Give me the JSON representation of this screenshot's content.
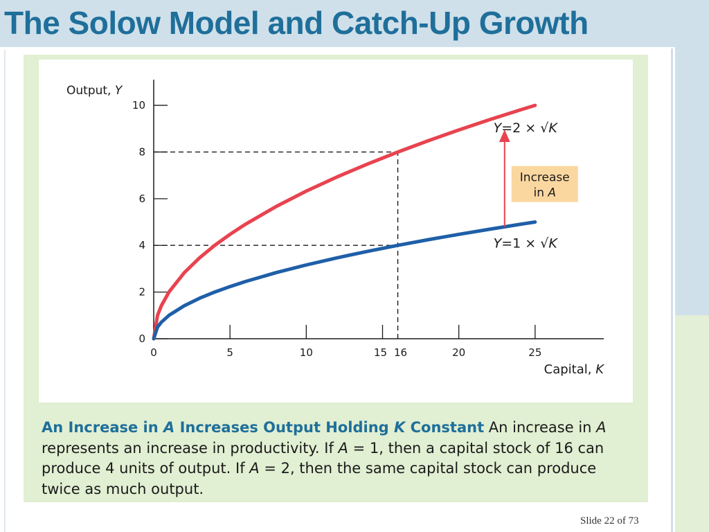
{
  "slide": {
    "title": "The Solow Model and Catch-Up Growth",
    "slide_number": "Slide 22 of 73"
  },
  "colors": {
    "title": "#1f6f9a",
    "red_curve": "#e8434f",
    "blue_curve": "#1f5fa8",
    "figure_background": "#e1efd2",
    "callout_background": "#fbd7a0"
  },
  "caption": {
    "heading_before_var_1": "An Increase in ",
    "heading_var_1": "A",
    "heading_middle": " Increases Output Holding ",
    "heading_var_2": "K",
    "heading_after_var_2": " Constant",
    "text_1": "  An increase in ",
    "var_1": "A",
    "text_2": " represents an increase in productivity. If ",
    "var_2": "A",
    "text_3": " = 1, then a capital stock of 16 can produce 4 units of output. If ",
    "var_3": "A",
    "text_4": " = 2, then the same capital stock can produce twice as much output."
  },
  "chart_data": {
    "type": "line",
    "ylabel_prefix": "Output, ",
    "ylabel_var": "Y",
    "xlabel_prefix": "Capital, ",
    "xlabel_var": "K",
    "xlim": [
      0,
      29.5
    ],
    "ylim": [
      0,
      11.1
    ],
    "xticks": [
      0,
      5,
      10,
      15,
      16,
      20,
      25
    ],
    "xtick_labels": [
      "0",
      "5",
      "10",
      "15",
      "16",
      "20",
      "25"
    ],
    "yticks": [
      0,
      2,
      4,
      6,
      8,
      10
    ],
    "ytick_labels": [
      "0",
      "2",
      "4",
      "6",
      "8",
      "10"
    ],
    "grid": false,
    "series": [
      {
        "name": "Y=2 × √K",
        "color": "#e8434f",
        "A": 2,
        "x": [
          0,
          0.25,
          0.5,
          1,
          2,
          3,
          4,
          5,
          6,
          8,
          10,
          12,
          14,
          16,
          18,
          20,
          22,
          24,
          25
        ],
        "y": [
          0,
          1.0,
          1.414,
          2.0,
          2.828,
          3.464,
          4.0,
          4.472,
          4.899,
          5.657,
          6.325,
          6.928,
          7.483,
          8.0,
          8.485,
          8.944,
          9.381,
          9.798,
          10.0
        ]
      },
      {
        "name": "Y=1 × √K",
        "color": "#1f5fa8",
        "A": 1,
        "x": [
          0,
          0.25,
          0.5,
          1,
          2,
          3,
          4,
          5,
          6,
          8,
          10,
          12,
          14,
          16,
          18,
          20,
          22,
          24,
          25
        ],
        "y": [
          0,
          0.5,
          0.707,
          1.0,
          1.414,
          1.732,
          2.0,
          2.236,
          2.449,
          2.828,
          3.162,
          3.464,
          3.742,
          4.0,
          4.243,
          4.472,
          4.69,
          4.899,
          5.0
        ]
      }
    ],
    "reference_lines": [
      {
        "kind": "horizontal",
        "y": 8,
        "x_end": 16
      },
      {
        "kind": "horizontal",
        "y": 4,
        "x_end": 16
      },
      {
        "kind": "vertical",
        "x": 16,
        "y_end": 8
      }
    ],
    "arrow": {
      "x": 23,
      "from_y": 4.796,
      "to_y": 8.9
    },
    "annotations": {
      "red_label": {
        "prefix": "Y",
        "text": "=2 × √",
        "var": "K"
      },
      "blue_label": {
        "prefix": "Y",
        "text": "=1 × √",
        "var": "K"
      },
      "callout_line1": "Increase",
      "callout_line2_prefix": "in ",
      "callout_line2_var": "A"
    }
  }
}
